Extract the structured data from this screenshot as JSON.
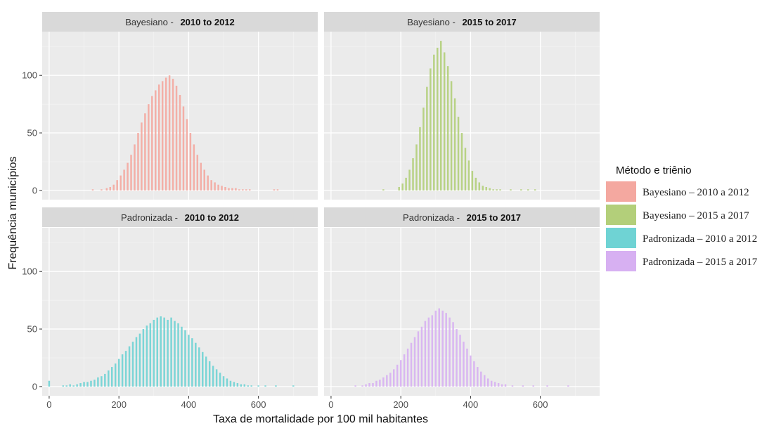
{
  "chart_data": {
    "type": "histogram",
    "xlabel": "Taxa de mortalidade por 100 mil habitantes",
    "ylabel": "Frequência municípios",
    "xlim": [
      -20,
      770
    ],
    "xticks": [
      0,
      200,
      400,
      600
    ],
    "ylim": [
      -8,
      138
    ],
    "yticks": [
      0,
      50,
      100
    ],
    "grid": true,
    "legend_position": "right",
    "legend": {
      "title": "Método e triênio",
      "items": [
        {
          "label": "Bayesiano – 2010 a 2012",
          "color": "#f4a8a0"
        },
        {
          "label": "Bayesiano – 2015 a 2017",
          "color": "#b3cf7a"
        },
        {
          "label": "Padronizada – 2010 a 2012",
          "color": "#6fd3d4"
        },
        {
          "label": "Padronizada – 2015 a 2017",
          "color": "#d7b0f2"
        }
      ]
    },
    "panels": [
      {
        "row": 0,
        "col": 0,
        "strip_method": "Bayesiano -",
        "strip_period": "2010 to 2012",
        "color": "#f4a8a0",
        "bin_width": 5,
        "bin_centers": [
          125,
          150,
          165,
          175,
          185,
          195,
          205,
          215,
          225,
          235,
          245,
          255,
          265,
          275,
          285,
          295,
          305,
          315,
          325,
          335,
          345,
          355,
          365,
          375,
          385,
          395,
          405,
          415,
          425,
          435,
          445,
          455,
          465,
          475,
          485,
          495,
          505,
          515,
          525,
          535,
          545,
          555,
          565,
          575,
          585,
          595,
          605,
          615,
          625,
          635,
          645,
          655
        ],
        "counts": [
          1,
          1,
          2,
          3,
          5,
          9,
          13,
          18,
          24,
          31,
          40,
          50,
          59,
          67,
          75,
          82,
          87,
          92,
          95,
          98,
          100,
          97,
          91,
          83,
          73,
          62,
          50,
          40,
          31,
          24,
          18,
          13,
          9,
          7,
          5,
          4,
          3,
          2,
          2,
          2,
          1,
          1,
          1,
          1,
          0,
          0,
          0,
          0,
          0,
          0,
          1,
          1
        ]
      },
      {
        "row": 0,
        "col": 1,
        "strip_method": "Bayesiano -",
        "strip_period": "2015 to 2017",
        "color": "#b3cf7a",
        "bin_width": 5,
        "bin_centers": [
          150,
          195,
          205,
          215,
          225,
          235,
          245,
          255,
          265,
          275,
          285,
          295,
          305,
          315,
          325,
          335,
          345,
          355,
          365,
          375,
          385,
          395,
          405,
          415,
          425,
          435,
          445,
          455,
          465,
          475,
          485,
          495,
          505,
          515,
          525,
          535,
          545,
          555,
          565,
          575,
          585
        ],
        "counts": [
          1,
          3,
          6,
          11,
          18,
          28,
          40,
          55,
          72,
          90,
          106,
          118,
          124,
          130,
          120,
          108,
          95,
          80,
          64,
          50,
          37,
          26,
          17,
          11,
          7,
          4,
          3,
          2,
          1,
          1,
          1,
          0,
          0,
          1,
          0,
          0,
          1,
          0,
          1,
          0,
          1
        ]
      },
      {
        "row": 1,
        "col": 0,
        "strip_method": "Padronizada -",
        "strip_period": "2010 to 2012",
        "color": "#6fd3d4",
        "bin_width": 5,
        "bin_centers": [
          0,
          40,
          50,
          60,
          70,
          80,
          90,
          100,
          110,
          120,
          130,
          140,
          150,
          160,
          170,
          180,
          190,
          200,
          210,
          220,
          230,
          240,
          250,
          260,
          270,
          280,
          290,
          300,
          310,
          320,
          330,
          340,
          350,
          360,
          370,
          380,
          390,
          400,
          410,
          420,
          430,
          440,
          450,
          460,
          470,
          480,
          490,
          500,
          510,
          520,
          530,
          540,
          550,
          560,
          570,
          580,
          600,
          620,
          650,
          700
        ],
        "counts": [
          5,
          1,
          1,
          2,
          1,
          2,
          3,
          4,
          4,
          5,
          6,
          8,
          9,
          11,
          14,
          17,
          20,
          24,
          28,
          31,
          35,
          39,
          43,
          46,
          50,
          53,
          55,
          58,
          60,
          61,
          60,
          58,
          60,
          57,
          55,
          52,
          49,
          45,
          42,
          38,
          34,
          30,
          26,
          22,
          18,
          15,
          12,
          9,
          7,
          5,
          4,
          3,
          2,
          2,
          1,
          1,
          1,
          1,
          1,
          1
        ]
      },
      {
        "row": 1,
        "col": 1,
        "strip_method": "Padronizada -",
        "strip_period": "2015 to 2017",
        "color": "#d7b0f2",
        "bin_width": 5,
        "bin_centers": [
          70,
          90,
          100,
          110,
          120,
          130,
          140,
          150,
          160,
          170,
          180,
          190,
          200,
          210,
          220,
          230,
          240,
          250,
          260,
          270,
          280,
          290,
          300,
          310,
          320,
          330,
          340,
          350,
          360,
          370,
          380,
          390,
          400,
          410,
          420,
          430,
          440,
          450,
          460,
          470,
          480,
          490,
          500,
          520,
          550,
          580,
          620,
          680
        ],
        "counts": [
          1,
          1,
          2,
          3,
          3,
          5,
          6,
          8,
          10,
          12,
          15,
          19,
          23,
          28,
          33,
          38,
          43,
          48,
          52,
          57,
          60,
          62,
          66,
          68,
          66,
          64,
          60,
          56,
          50,
          45,
          39,
          33,
          27,
          22,
          17,
          13,
          10,
          7,
          5,
          4,
          3,
          2,
          2,
          1,
          1,
          1,
          1,
          1
        ]
      }
    ]
  }
}
